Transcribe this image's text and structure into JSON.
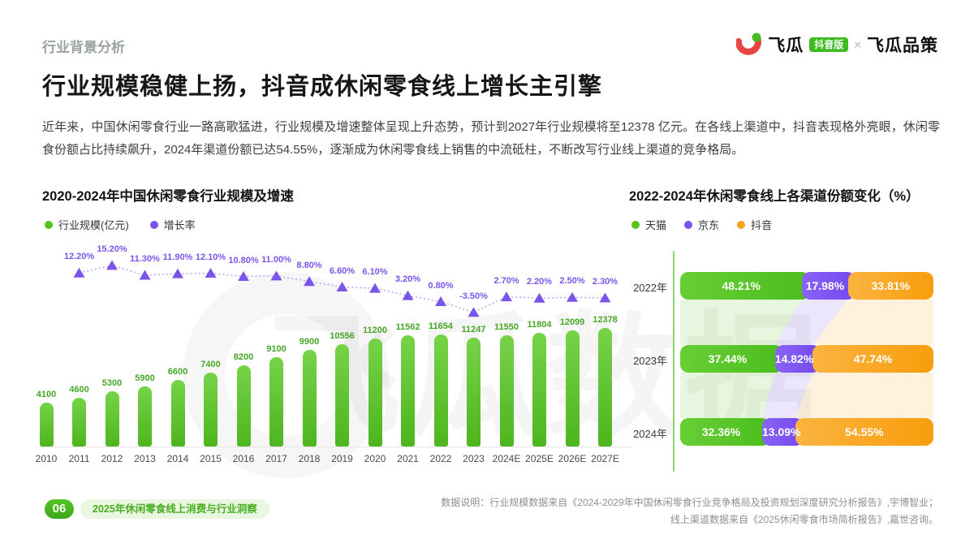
{
  "header": {
    "section_label": "行业背景分析",
    "title": "行业规模稳健上扬，抖音成休闲零食线上增长主引擎",
    "paragraph": "近年来，中国休闲零食行业一路高歌猛进，行业规模及增速整体呈现上升态势，预计到2027年行业规模将至12378 亿元。在各线上渠道中，抖音表现格外亮眼，休闲零食份额占比持续飙升，2024年渠道份额已达54.55%，逐渐成为休闲零食线上销售的中流砥柱，不断改写行业线上渠道的竞争格局。"
  },
  "logo": {
    "brand": "飞瓜",
    "badge": "抖音版",
    "separator": "×",
    "brand2": "飞瓜品策"
  },
  "watermark": "飞瓜数据",
  "colors": {
    "bar_green": "#52bd26",
    "growth_purple": "#7b55ea",
    "tmall_green": "#52c41a",
    "jd_purple": "#7a4ff0",
    "douyin_orange": "#f8a41f",
    "brand_green": "#3fbb22"
  },
  "chart_data": [
    {
      "type": "bar",
      "title": "2020-2024年中国休闲零食行业规模及增速",
      "legend": [
        {
          "label": "行业规模(亿元)",
          "color": "#52c41a"
        },
        {
          "label": "增长率",
          "color": "#7b55ea"
        }
      ],
      "categories": [
        "2010",
        "2011",
        "2012",
        "2013",
        "2014",
        "2015",
        "2016",
        "2017",
        "2018",
        "2019",
        "2020",
        "2021",
        "2022",
        "2023",
        "2024E",
        "2025E",
        "2026E",
        "2027E"
      ],
      "series": [
        {
          "name": "行业规模(亿元)",
          "type": "bar",
          "values": [
            4100,
            4600,
            5300,
            5900,
            6600,
            7400,
            8200,
            9100,
            9900,
            10556,
            11200,
            11562,
            11654,
            11247,
            11550,
            11804,
            12099,
            12378
          ]
        },
        {
          "name": "增长率",
          "type": "line",
          "values": [
            null,
            12.2,
            15.2,
            11.3,
            11.9,
            12.1,
            10.8,
            11.0,
            8.8,
            6.6,
            6.1,
            3.2,
            0.8,
            -3.5,
            2.7,
            2.2,
            2.5,
            2.3
          ],
          "labels": [
            null,
            "12.20%",
            "15.20%",
            "11.30%",
            "11.90%",
            "12.10%",
            "10.80%",
            "11.00%",
            "8.80%",
            "6.60%",
            "6.10%",
            "3.20%",
            "0.80%",
            "-3.50%",
            "2.70%",
            "2.20%",
            "2.50%",
            "2.30%"
          ]
        }
      ],
      "ylabel": "",
      "xlabel": "",
      "grid": false
    },
    {
      "type": "bar",
      "subtype": "stacked-horizontal",
      "title": "2022-2024年休闲零食线上各渠道份额变化（%）",
      "categories": [
        "2022年",
        "2023年",
        "2024年"
      ],
      "series": [
        {
          "name": "天猫",
          "color": "#52c41a",
          "values": [
            48.21,
            37.44,
            32.36
          ],
          "labels": [
            "48.21%",
            "37.44%",
            "32.36%"
          ]
        },
        {
          "name": "京东",
          "color": "#7a4ff0",
          "values": [
            17.98,
            14.82,
            13.09
          ],
          "labels": [
            "17.98%",
            "14.82%",
            "13.09%"
          ]
        },
        {
          "name": "抖音",
          "color": "#f8a41f",
          "values": [
            33.81,
            47.74,
            54.55
          ],
          "labels": [
            "33.81%",
            "47.74%",
            "54.55%"
          ]
        }
      ],
      "xlim": [
        0,
        100
      ],
      "legend_position": "top"
    }
  ],
  "footer": {
    "page_number": "06",
    "doc_title": "2025年休闲零食线上消费与行业洞察",
    "source_line1": "数据说明：行业规模数据来自《2024-2029年中国休闲零食行业竞争格局及投资规划深度研究分析报告》,宇博智业；",
    "source_line2": "线上渠道数据来自《2025休闲零食市场简析报告》,嘉世咨询。"
  }
}
